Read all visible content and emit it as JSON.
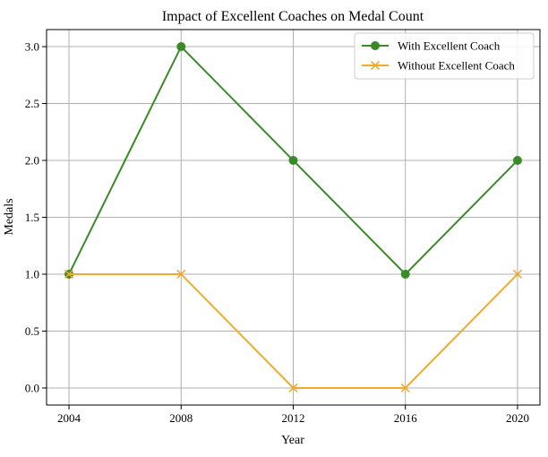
{
  "chart_data": {
    "type": "line",
    "title": "Impact of Excellent Coaches on Medal Count",
    "xlabel": "Year",
    "ylabel": "Medals",
    "x": [
      2004,
      2008,
      2012,
      2016,
      2020
    ],
    "x_ticks": [
      "2004",
      "2008",
      "2012",
      "2016",
      "2020"
    ],
    "y_ticks": [
      "0.0",
      "0.5",
      "1.0",
      "1.5",
      "2.0",
      "2.5",
      "3.0"
    ],
    "xlim": [
      2003.2,
      2020.8
    ],
    "ylim": [
      -0.15,
      3.15
    ],
    "grid": true,
    "legend_position": "top-right",
    "series": [
      {
        "name": "With Excellent Coach",
        "values": [
          1,
          3,
          2,
          1,
          2
        ],
        "color": "#3a8a2a",
        "marker": "circle"
      },
      {
        "name": "Without Excellent Coach",
        "values": [
          1,
          1,
          0,
          0,
          1
        ],
        "color": "#f0ab2e",
        "marker": "x"
      }
    ]
  }
}
